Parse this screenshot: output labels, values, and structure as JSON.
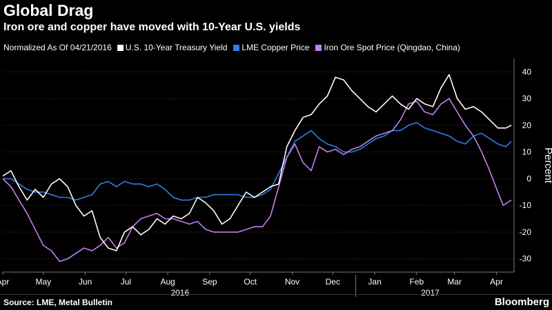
{
  "header": {
    "title": "Global Drag",
    "subtitle": "Iron ore and copper have moved with 10-Year U.S. yields"
  },
  "legend": {
    "note": "Normalized As Of 04/21/2016",
    "items": [
      {
        "label": "U.S. 10-Year Treasury Yield",
        "color": "#ffffff"
      },
      {
        "label": "LME Copper Price",
        "color": "#2f7fe8"
      },
      {
        "label": "Iron Ore Spot Price (Qingdao, China)",
        "color": "#c77ff0"
      }
    ]
  },
  "footer": {
    "source": "Source: LME, Metal Bulletin",
    "brand": "Bloomberg"
  },
  "chart_data": {
    "type": "line",
    "ylabel": "Percent",
    "ylim": [
      -35,
      45
    ],
    "yticks": [
      40,
      30,
      20,
      10,
      0,
      -10,
      -20,
      -30
    ],
    "xlim": [
      "2016-04-15",
      "2017-04-28"
    ],
    "months": [
      {
        "label": "Apr",
        "date": "2016-04-15"
      },
      {
        "label": "May",
        "date": "2016-05-15"
      },
      {
        "label": "Jun",
        "date": "2016-06-15"
      },
      {
        "label": "Jul",
        "date": "2016-07-15"
      },
      {
        "label": "Aug",
        "date": "2016-08-15"
      },
      {
        "label": "Sep",
        "date": "2016-09-15"
      },
      {
        "label": "Oct",
        "date": "2016-10-15"
      },
      {
        "label": "Nov",
        "date": "2016-11-15"
      },
      {
        "label": "Dec",
        "date": "2016-12-15"
      },
      {
        "label": "Jan",
        "date": "2017-01-15"
      },
      {
        "label": "Feb",
        "date": "2017-02-15"
      },
      {
        "label": "Mar",
        "date": "2017-03-15"
      },
      {
        "label": "Apr",
        "date": "2017-04-15"
      }
    ],
    "years": [
      {
        "label": "2016",
        "date": "2016-08-24"
      },
      {
        "label": "2017",
        "date": "2017-02-25"
      }
    ],
    "year_break": "2017-01-01",
    "grid": true,
    "legend_position": "top",
    "series": [
      {
        "name": "U.S. 10-Year Treasury Yield",
        "color": "#ffffff",
        "points": [
          [
            "2016-04-15",
            1
          ],
          [
            "2016-04-21",
            3
          ],
          [
            "2016-04-27",
            -3
          ],
          [
            "2016-05-03",
            -8
          ],
          [
            "2016-05-09",
            -4
          ],
          [
            "2016-05-15",
            -7
          ],
          [
            "2016-05-21",
            -2
          ],
          [
            "2016-05-27",
            0
          ],
          [
            "2016-06-02",
            -3
          ],
          [
            "2016-06-08",
            -10
          ],
          [
            "2016-06-14",
            -14
          ],
          [
            "2016-06-20",
            -12
          ],
          [
            "2016-06-26",
            -22
          ],
          [
            "2016-07-02",
            -26
          ],
          [
            "2016-07-08",
            -27
          ],
          [
            "2016-07-14",
            -20
          ],
          [
            "2016-07-20",
            -18
          ],
          [
            "2016-07-26",
            -21
          ],
          [
            "2016-08-01",
            -19
          ],
          [
            "2016-08-07",
            -15
          ],
          [
            "2016-08-13",
            -17
          ],
          [
            "2016-08-19",
            -14
          ],
          [
            "2016-08-25",
            -15
          ],
          [
            "2016-08-31",
            -13
          ],
          [
            "2016-09-06",
            -7
          ],
          [
            "2016-09-12",
            -9
          ],
          [
            "2016-09-18",
            -12
          ],
          [
            "2016-09-24",
            -17
          ],
          [
            "2016-09-30",
            -15
          ],
          [
            "2016-10-06",
            -10
          ],
          [
            "2016-10-12",
            -5
          ],
          [
            "2016-10-18",
            -7
          ],
          [
            "2016-10-24",
            -5
          ],
          [
            "2016-10-30",
            -3
          ],
          [
            "2016-11-05",
            -2
          ],
          [
            "2016-11-11",
            12
          ],
          [
            "2016-11-17",
            18
          ],
          [
            "2016-11-23",
            23
          ],
          [
            "2016-11-29",
            24
          ],
          [
            "2016-12-05",
            28
          ],
          [
            "2016-12-11",
            31
          ],
          [
            "2016-12-17",
            38
          ],
          [
            "2016-12-23",
            37
          ],
          [
            "2016-12-29",
            33
          ],
          [
            "2017-01-04",
            30
          ],
          [
            "2017-01-10",
            27
          ],
          [
            "2017-01-16",
            25
          ],
          [
            "2017-01-22",
            28
          ],
          [
            "2017-01-28",
            31
          ],
          [
            "2017-02-03",
            28
          ],
          [
            "2017-02-09",
            26
          ],
          [
            "2017-02-15",
            30
          ],
          [
            "2017-02-21",
            28
          ],
          [
            "2017-02-27",
            27
          ],
          [
            "2017-03-05",
            34
          ],
          [
            "2017-03-11",
            39
          ],
          [
            "2017-03-17",
            30
          ],
          [
            "2017-03-23",
            26
          ],
          [
            "2017-03-29",
            27
          ],
          [
            "2017-04-04",
            25
          ],
          [
            "2017-04-10",
            22
          ],
          [
            "2017-04-16",
            19
          ],
          [
            "2017-04-22",
            19
          ],
          [
            "2017-04-26",
            20
          ]
        ]
      },
      {
        "name": "LME Copper Price",
        "color": "#2f7fe8",
        "points": [
          [
            "2016-04-15",
            0
          ],
          [
            "2016-04-21",
            0
          ],
          [
            "2016-04-27",
            -2
          ],
          [
            "2016-05-03",
            -4
          ],
          [
            "2016-05-09",
            -5
          ],
          [
            "2016-05-15",
            -5
          ],
          [
            "2016-05-21",
            -6
          ],
          [
            "2016-05-27",
            -7
          ],
          [
            "2016-06-02",
            -7
          ],
          [
            "2016-06-08",
            -8
          ],
          [
            "2016-06-14",
            -7
          ],
          [
            "2016-06-20",
            -6
          ],
          [
            "2016-06-26",
            -2
          ],
          [
            "2016-07-02",
            -1
          ],
          [
            "2016-07-08",
            -3
          ],
          [
            "2016-07-14",
            -1
          ],
          [
            "2016-07-20",
            -2
          ],
          [
            "2016-07-26",
            -2
          ],
          [
            "2016-08-01",
            -3
          ],
          [
            "2016-08-07",
            -2
          ],
          [
            "2016-08-13",
            -4
          ],
          [
            "2016-08-19",
            -7
          ],
          [
            "2016-08-25",
            -8
          ],
          [
            "2016-08-31",
            -8
          ],
          [
            "2016-09-06",
            -7
          ],
          [
            "2016-09-12",
            -7
          ],
          [
            "2016-09-18",
            -6
          ],
          [
            "2016-09-24",
            -6
          ],
          [
            "2016-09-30",
            -6
          ],
          [
            "2016-10-06",
            -6
          ],
          [
            "2016-10-12",
            -7
          ],
          [
            "2016-10-18",
            -7
          ],
          [
            "2016-10-24",
            -6
          ],
          [
            "2016-10-30",
            -4
          ],
          [
            "2016-11-05",
            2
          ],
          [
            "2016-11-11",
            8
          ],
          [
            "2016-11-17",
            14
          ],
          [
            "2016-11-23",
            16
          ],
          [
            "2016-11-29",
            18
          ],
          [
            "2016-12-05",
            15
          ],
          [
            "2016-12-11",
            13
          ],
          [
            "2016-12-17",
            12
          ],
          [
            "2016-12-23",
            10
          ],
          [
            "2016-12-29",
            10
          ],
          [
            "2017-01-04",
            11
          ],
          [
            "2017-01-10",
            13
          ],
          [
            "2017-01-16",
            15
          ],
          [
            "2017-01-22",
            16
          ],
          [
            "2017-01-28",
            18
          ],
          [
            "2017-02-03",
            18
          ],
          [
            "2017-02-09",
            20
          ],
          [
            "2017-02-15",
            21
          ],
          [
            "2017-02-21",
            19
          ],
          [
            "2017-02-27",
            18
          ],
          [
            "2017-03-05",
            17
          ],
          [
            "2017-03-11",
            16
          ],
          [
            "2017-03-17",
            14
          ],
          [
            "2017-03-23",
            13
          ],
          [
            "2017-03-29",
            16
          ],
          [
            "2017-04-04",
            17
          ],
          [
            "2017-04-10",
            15
          ],
          [
            "2017-04-16",
            13
          ],
          [
            "2017-04-22",
            12
          ],
          [
            "2017-04-26",
            14
          ]
        ]
      },
      {
        "name": "Iron Ore Spot Price (Qingdao, China)",
        "color": "#c77ff0",
        "points": [
          [
            "2016-04-15",
            0
          ],
          [
            "2016-04-21",
            -3
          ],
          [
            "2016-04-27",
            -8
          ],
          [
            "2016-05-03",
            -13
          ],
          [
            "2016-05-09",
            -19
          ],
          [
            "2016-05-15",
            -25
          ],
          [
            "2016-05-21",
            -27
          ],
          [
            "2016-05-27",
            -31
          ],
          [
            "2016-06-02",
            -30
          ],
          [
            "2016-06-08",
            -28
          ],
          [
            "2016-06-14",
            -26
          ],
          [
            "2016-06-20",
            -27
          ],
          [
            "2016-06-26",
            -25
          ],
          [
            "2016-07-02",
            -22
          ],
          [
            "2016-07-08",
            -26
          ],
          [
            "2016-07-14",
            -24
          ],
          [
            "2016-07-20",
            -18
          ],
          [
            "2016-07-26",
            -15
          ],
          [
            "2016-08-01",
            -14
          ],
          [
            "2016-08-07",
            -13
          ],
          [
            "2016-08-13",
            -15
          ],
          [
            "2016-08-19",
            -15
          ],
          [
            "2016-08-25",
            -16
          ],
          [
            "2016-08-31",
            -17
          ],
          [
            "2016-09-06",
            -16
          ],
          [
            "2016-09-12",
            -19
          ],
          [
            "2016-09-18",
            -20
          ],
          [
            "2016-09-24",
            -20
          ],
          [
            "2016-09-30",
            -20
          ],
          [
            "2016-10-06",
            -20
          ],
          [
            "2016-10-12",
            -19
          ],
          [
            "2016-10-18",
            -18
          ],
          [
            "2016-10-24",
            -18
          ],
          [
            "2016-10-30",
            -14
          ],
          [
            "2016-11-05",
            -3
          ],
          [
            "2016-11-11",
            8
          ],
          [
            "2016-11-17",
            13
          ],
          [
            "2016-11-23",
            6
          ],
          [
            "2016-11-29",
            3
          ],
          [
            "2016-12-05",
            12
          ],
          [
            "2016-12-11",
            10
          ],
          [
            "2016-12-17",
            11
          ],
          [
            "2016-12-23",
            9
          ],
          [
            "2016-12-29",
            11
          ],
          [
            "2017-01-04",
            12
          ],
          [
            "2017-01-10",
            14
          ],
          [
            "2017-01-16",
            16
          ],
          [
            "2017-01-22",
            17
          ],
          [
            "2017-01-28",
            18
          ],
          [
            "2017-02-03",
            22
          ],
          [
            "2017-02-09",
            28
          ],
          [
            "2017-02-15",
            29
          ],
          [
            "2017-02-21",
            25
          ],
          [
            "2017-02-27",
            24
          ],
          [
            "2017-03-05",
            28
          ],
          [
            "2017-03-11",
            30
          ],
          [
            "2017-03-17",
            25
          ],
          [
            "2017-03-23",
            20
          ],
          [
            "2017-03-29",
            16
          ],
          [
            "2017-04-04",
            10
          ],
          [
            "2017-04-10",
            3
          ],
          [
            "2017-04-16",
            -5
          ],
          [
            "2017-04-20",
            -10
          ],
          [
            "2017-04-26",
            -8
          ]
        ]
      }
    ]
  }
}
